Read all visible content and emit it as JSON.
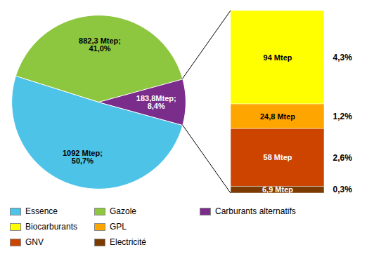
{
  "chart_data": [
    {
      "type": "pie",
      "categories": [
        "Essence",
        "Gazole",
        "Carburants alternatifs"
      ],
      "values": [
        1092,
        882.3,
        183.8
      ],
      "value_labels": [
        "1092 Mtep;\n50,7%",
        "882,3 Mtep;\n41,0%",
        "183,8Mtep;\n8,4%"
      ],
      "colors": [
        "#4DC3E8",
        "#8DC63F",
        "#7B2D8B"
      ],
      "data_labels": true,
      "legend": "bottom"
    },
    {
      "type": "bar",
      "stacked": true,
      "categories": [
        null
      ],
      "series": [
        {
          "name": "Biocarburants",
          "color": "#FFFF00",
          "values": [
            94
          ],
          "value_labels": [
            "94 Mtep"
          ],
          "share_labels": [
            "4,3%"
          ]
        },
        {
          "name": "GPL",
          "color": "#FFA500",
          "values": [
            24.8
          ],
          "value_labels": [
            "24,8 Mtep"
          ],
          "share_labels": [
            "1,2%"
          ]
        },
        {
          "name": "GNV",
          "color": "#CC4400",
          "values": [
            58
          ],
          "value_labels": [
            "58 Mtep"
          ],
          "share_labels": [
            "2,6%"
          ]
        },
        {
          "name": "Electricité",
          "color": "#7B3A00",
          "values": [
            6.9
          ],
          "value_labels": [
            "6,9 Mtep"
          ],
          "share_labels": [
            "0,3%"
          ]
        }
      ],
      "ylim": [
        0,
        183.7
      ],
      "tick_labels": false,
      "grid": false,
      "data_labels": true,
      "legend": "bottom"
    }
  ]
}
